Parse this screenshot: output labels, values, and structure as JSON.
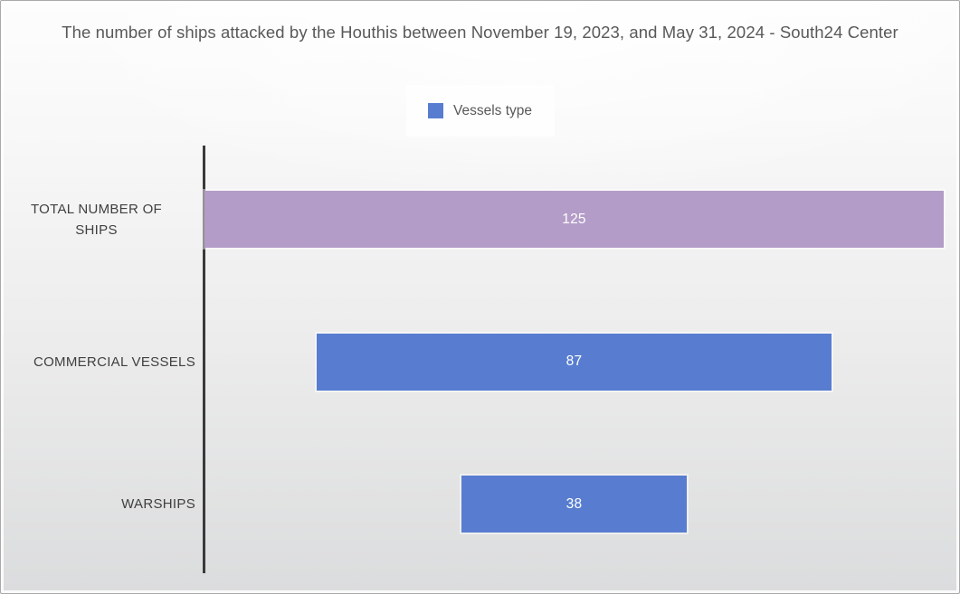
{
  "title": "The number of ships attacked by the Houthis between November 19, 2023, and May 31, 2024 - South24 Center",
  "legend": {
    "label": "Vessels type",
    "swatch_color": "#587dd0"
  },
  "colors": {
    "bar_blue": "#587dd0",
    "bar_purple": "#b39cc8",
    "axis": "#3a3a3a",
    "title_text": "#595959",
    "category_text": "#404040",
    "value_text": "#ffffff"
  },
  "chart_data": {
    "type": "bar",
    "orientation": "horizontal-centered",
    "title": "The number of ships attacked by the Houthis between November 19, 2023, and May 31, 2024 - South24 Center",
    "legend_entries": [
      "Vessels type"
    ],
    "legend_position": "top-center",
    "categories": [
      "TOTAL NUMBER OF SHIPS",
      "COMMERCIAL VESSELS",
      "WARSHIPS"
    ],
    "values": [
      125,
      87,
      38
    ],
    "bar_colors": [
      "#b39cc8",
      "#587dd0",
      "#587dd0"
    ],
    "value_labels": [
      "125",
      "87",
      "38"
    ],
    "xlim": [
      0,
      125
    ],
    "grid": false,
    "xlabel": "",
    "ylabel": ""
  }
}
